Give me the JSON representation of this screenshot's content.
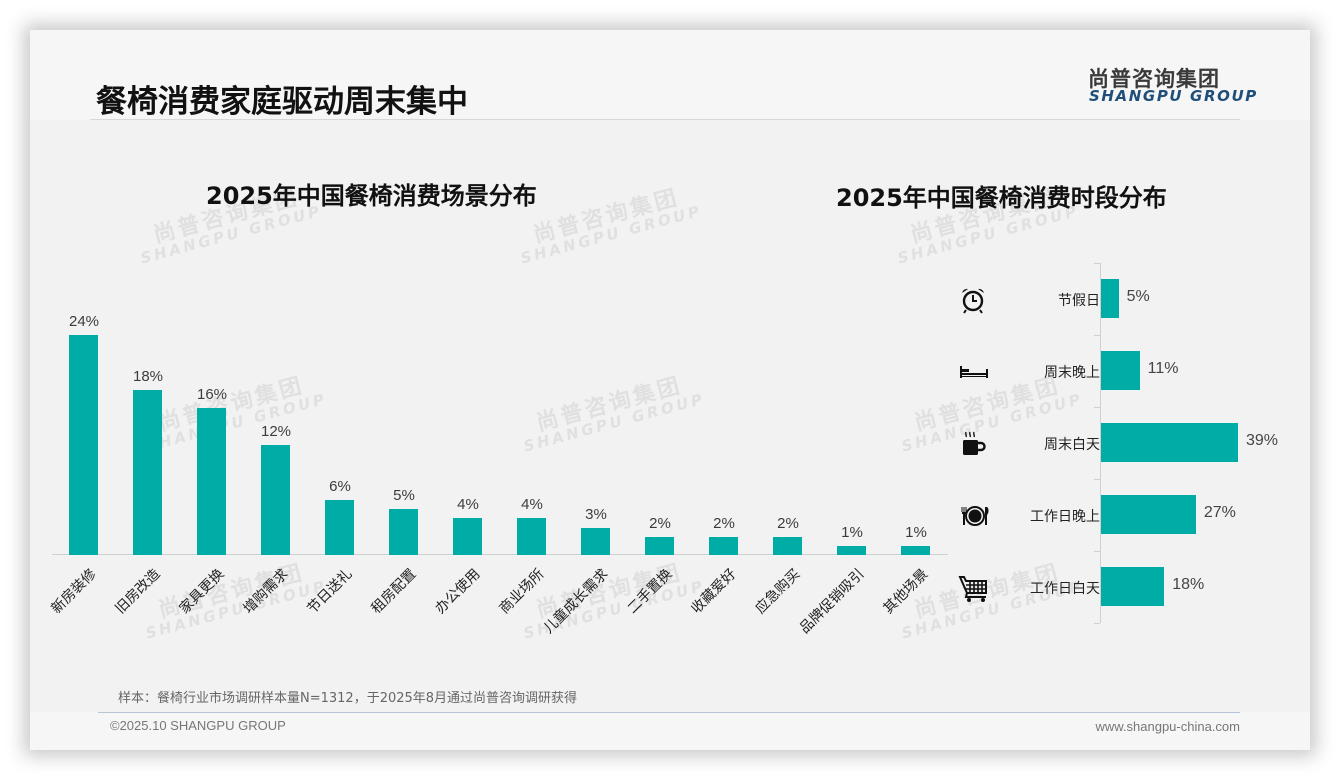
{
  "header": {
    "title": "餐椅消费家庭驱动周末集中",
    "logo_cn": "尚普咨询集团",
    "logo_en": "SHANGPU GROUP"
  },
  "watermark": {
    "cn": "尚普咨询集团",
    "en": "SHANGPU GROUP"
  },
  "colors": {
    "bar": "#00ADA6",
    "title": "#111111",
    "logo_en": "#1F4E79"
  },
  "chart_data": [
    {
      "type": "bar",
      "title": "2025年中国餐椅消费场景分布",
      "xlabel": "",
      "ylabel": "",
      "categories": [
        "新房装修",
        "旧房改造",
        "家具更换",
        "增购需求",
        "节日送礼",
        "租房配置",
        "办公使用",
        "商业场所",
        "儿童成长需求",
        "二手置换",
        "收藏爱好",
        "应急购买",
        "品牌促销吸引",
        "其他场景"
      ],
      "values": [
        24,
        18,
        16,
        12,
        6,
        5,
        4,
        4,
        3,
        2,
        2,
        2,
        1,
        1
      ],
      "labels": [
        "24%",
        "18%",
        "16%",
        "12%",
        "6%",
        "5%",
        "4%",
        "4%",
        "3%",
        "2%",
        "2%",
        "2%",
        "1%",
        "1%"
      ],
      "unit": "%",
      "grid": false,
      "legend": "none",
      "ylim": [
        0,
        26
      ]
    },
    {
      "type": "bar",
      "orientation": "horizontal",
      "title": "2025年中国餐椅消费时段分布",
      "categories": [
        "节假日",
        "周末晚上",
        "周末白天",
        "工作日晚上",
        "工作日白天"
      ],
      "values": [
        5,
        11,
        39,
        27,
        18
      ],
      "labels": [
        "5%",
        "11%",
        "39%",
        "27%",
        "18%"
      ],
      "icons": [
        "alarm-clock-icon",
        "bed-icon",
        "coffee-cup-icon",
        "plate-cutlery-icon",
        "shopping-cart-icon"
      ],
      "unit": "%",
      "grid": false,
      "legend": "none"
    }
  ],
  "footer": {
    "note": "样本：餐椅行业市场调研样本量N=1312，于2025年8月通过尚普咨询调研获得",
    "copyright": "©2025.10 SHANGPU GROUP",
    "website": "www.shangpu-china.com"
  }
}
